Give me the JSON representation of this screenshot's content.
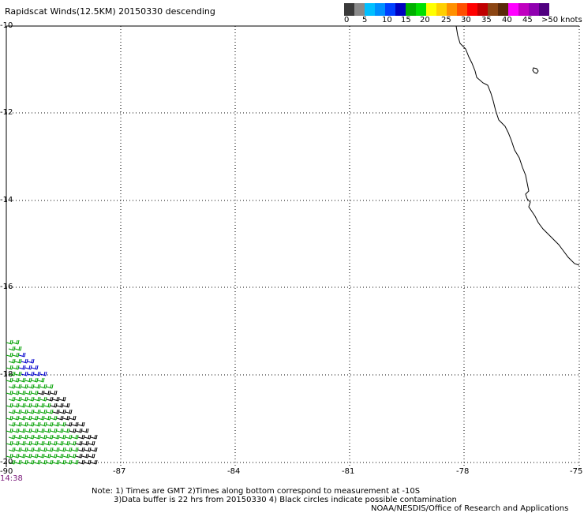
{
  "title": "Rapidscat Winds(12.5KM) 20150330 descending",
  "colorbar": {
    "colors": [
      "#3a3a3a",
      "#8a8a8a",
      "#00bfff",
      "#0090ff",
      "#0040ff",
      "#0000c0",
      "#00b000",
      "#00e000",
      "#ffff00",
      "#ffd000",
      "#ff9000",
      "#ff5000",
      "#ff0000",
      "#c00000",
      "#8b4513",
      "#5a2a0a",
      "#ff00ff",
      "#c000c0",
      "#9000b0",
      "#500080"
    ],
    "labels": [
      "0",
      "5",
      "10",
      "15",
      "20",
      "25",
      "30",
      "35",
      "40",
      "45",
      ">50 knots"
    ]
  },
  "lat_labels": [
    "-10",
    "-12",
    "-14",
    "-16",
    "-18",
    "-20"
  ],
  "lon_labels": [
    "-90",
    "-87",
    "-84",
    "-81",
    "-78",
    "-75"
  ],
  "time_label": "14:38",
  "notes": {
    "line1": "Note: 1) Times are GMT 2)Times along bottom correspond to measurement at -10S",
    "line2": "3)Data buffer is 22 hrs from 20150330 4) Black circles indicate possible contamination"
  },
  "credit": "NOAA/NESDIS/Office of Research and Applications"
}
